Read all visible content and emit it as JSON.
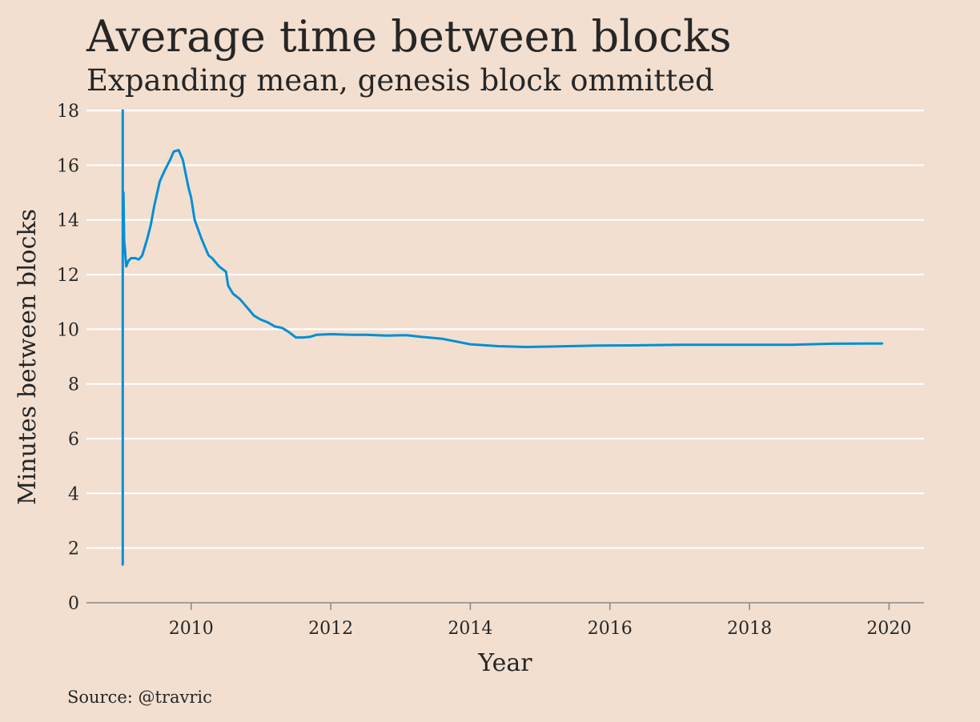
{
  "chart_data": {
    "type": "line",
    "title": "Average time between blocks",
    "subtitle": "Expanding mean, genesis block ommitted",
    "xlabel": "Year",
    "ylabel": "Minutes between blocks",
    "source": "Source: @travric",
    "xlim": [
      2008.5,
      2020.5
    ],
    "ylim": [
      0,
      18
    ],
    "xticks": [
      2010,
      2012,
      2014,
      2016,
      2018,
      2020
    ],
    "yticks": [
      0,
      2,
      4,
      6,
      8,
      10,
      12,
      14,
      16,
      18
    ],
    "grid": "horizontal",
    "legend": "none",
    "series": [
      {
        "color": "#008fd5",
        "x": [
          2009.02,
          2009.02,
          2009.02,
          2009.03,
          2009.04,
          2009.05,
          2009.06,
          2009.07,
          2009.1,
          2009.14,
          2009.2,
          2009.25,
          2009.3,
          2009.37,
          2009.42,
          2009.47,
          2009.55,
          2009.62,
          2009.7,
          2009.75,
          2009.82,
          2009.88,
          2009.92,
          2009.96,
          2010.0,
          2010.05,
          2010.15,
          2010.25,
          2010.3,
          2010.4,
          2010.5,
          2010.53,
          2010.6,
          2010.7,
          2010.8,
          2010.9,
          2011.0,
          2011.1,
          2011.2,
          2011.3,
          2011.4,
          2011.5,
          2011.6,
          2011.7,
          2011.8,
          2012.0,
          2012.3,
          2012.5,
          2012.8,
          2013.0,
          2013.1,
          2013.3,
          2013.6,
          2013.8,
          2014.0,
          2014.4,
          2014.8,
          2015.2,
          2015.8,
          2016.3,
          2017.0,
          2018.0,
          2018.6,
          2019.2,
          2019.9
        ],
        "y": [
          1.4,
          18.0,
          13.0,
          15.0,
          13.2,
          13.0,
          12.6,
          12.3,
          12.5,
          12.6,
          12.6,
          12.55,
          12.7,
          13.3,
          13.8,
          14.5,
          15.4,
          15.8,
          16.2,
          16.5,
          16.55,
          16.2,
          15.7,
          15.2,
          14.8,
          14.0,
          13.3,
          12.7,
          12.6,
          12.3,
          12.1,
          11.6,
          11.3,
          11.1,
          10.8,
          10.5,
          10.35,
          10.25,
          10.1,
          10.05,
          9.9,
          9.7,
          9.7,
          9.72,
          9.8,
          9.82,
          9.8,
          9.8,
          9.77,
          9.78,
          9.78,
          9.72,
          9.65,
          9.55,
          9.45,
          9.38,
          9.35,
          9.37,
          9.4,
          9.41,
          9.43,
          9.43,
          9.43,
          9.47,
          9.48
        ]
      }
    ]
  }
}
